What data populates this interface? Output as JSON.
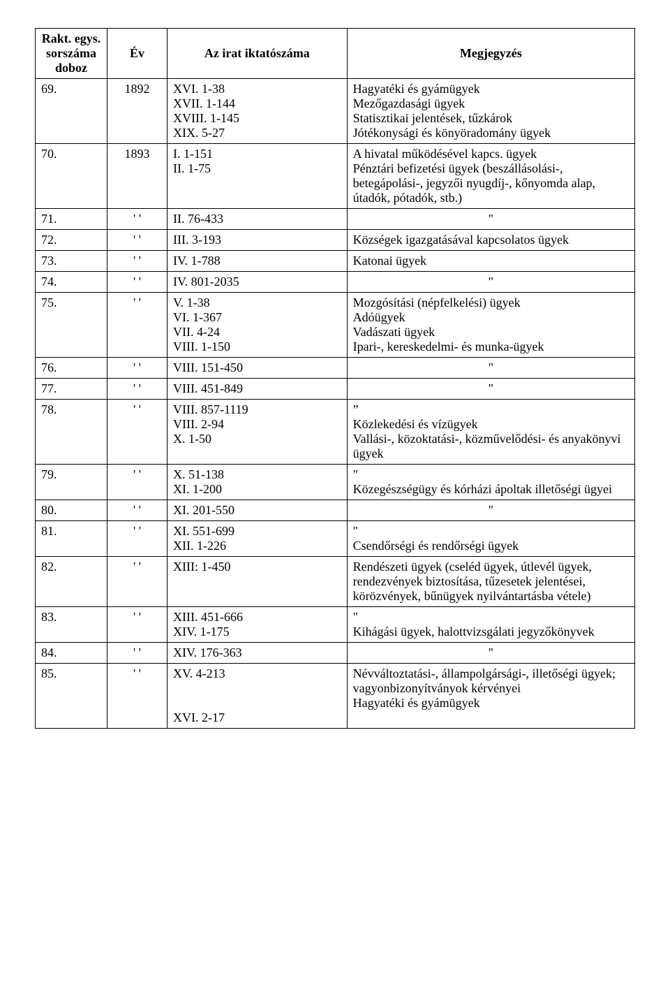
{
  "table": {
    "headers": {
      "col1_line1": "Rakt. egys.",
      "col1_line2": "sorszáma",
      "col1_line3": "doboz",
      "col2": "Év",
      "col3": "Az irat iktatószáma",
      "col4": "Megjegyzés"
    },
    "rows": [
      {
        "num": "69.",
        "ev": "1892",
        "ikt": [
          "XVI. 1-38",
          "XVII. 1-144",
          "XVIII. 1-145",
          "XIX. 5-27"
        ],
        "megj": "Hagyatéki és gyámügyek\nMezőgazdasági ügyek\nStatisztikai jelentések, tűzkárok\nJótékonysági és könyöradomány ügyek"
      },
      {
        "num": "70.",
        "ev": "1893",
        "ikt": [
          "I. 1-151",
          "II. 1-75"
        ],
        "megj": "A hivatal működésével kapcs. ügyek\nPénztári befizetési ügyek (beszállásolási-, betegápolási-, jegyzői nyugdíj-, kőnyomda alap, útadók, pótadók, stb.)"
      },
      {
        "num": "71.",
        "ev": "' '",
        "ikt": [
          "II. 76-433"
        ],
        "megj": "\"",
        "megj_center": true
      },
      {
        "num": "72.",
        "ev": "' '",
        "ikt": [
          "III. 3-193"
        ],
        "megj": "Községek igazgatásával kapcsolatos ügyek"
      },
      {
        "num": "73.",
        "ev": "' '",
        "ikt": [
          "IV. 1-788"
        ],
        "megj": "Katonai ügyek"
      },
      {
        "num": "74.",
        "ev": "' '",
        "ikt": [
          "IV. 801-2035"
        ],
        "megj": "\"",
        "megj_center": true
      },
      {
        "num": "75.",
        "ev": "' '",
        "ikt": [
          "V. 1-38",
          "VI. 1-367",
          "VII. 4-24",
          "VIII. 1-150"
        ],
        "megj": "Mozgósítási (népfelkelési) ügyek\nAdóügyek\nVadászati ügyek\nIpari-, kereskedelmi- és munka-ügyek"
      },
      {
        "num": "76.",
        "ev": "' '",
        "ikt": [
          "VIII. 151-450"
        ],
        "megj": "\"",
        "megj_center": true
      },
      {
        "num": "77.",
        "ev": "' '",
        "ikt": [
          "VIII. 451-849"
        ],
        "megj": "\"",
        "megj_center": true
      },
      {
        "num": "78.",
        "ev": "' '",
        "ikt": [
          "VIII. 857-1119",
          "VIII.   2-94",
          "X. 1-50"
        ],
        "megj": "”\nKözlekedési és vízügyek\nVallási-, közoktatási-, közművelődési- és anyakönyvi ügyek"
      },
      {
        "num": "79.",
        "ev": "' '",
        "ikt": [
          "X. 51-138",
          "XI. 1-200"
        ],
        "megj": "\"\nKözegészségügy és kórházi ápoltak illetőségi ügyei"
      },
      {
        "num": "80.",
        "ev": "' '",
        "ikt": [
          "XI. 201-550"
        ],
        "megj": "\"",
        "megj_center": true
      },
      {
        "num": "81.",
        "ev": "' '",
        "ikt": [
          "XI. 551-699",
          "XII. 1-226"
        ],
        "megj": "\"\nCsendőrségi és rendőrségi ügyek"
      },
      {
        "num": "82.",
        "ev": "' '",
        "ikt": [
          "XIII: 1-450"
        ],
        "megj": "Rendészeti ügyek (cseléd ügyek, útlevél ügyek, rendezvények biztosítása, tűzesetek jelentései, körözvények, bűnügyek nyilvántartásba vétele)"
      },
      {
        "num": "83.",
        "ev": "' '",
        "ikt": [
          "XIII. 451-666",
          "XIV. 1-175"
        ],
        "megj": "\"\nKihágási ügyek, halottvizsgálati jegyzőkönyvek"
      },
      {
        "num": "84.",
        "ev": "' '",
        "ikt": [
          "XIV. 176-363"
        ],
        "megj": "\"",
        "megj_center": true
      },
      {
        "num": "85.",
        "ev": "' '",
        "ikt": [
          "XV. 4-213",
          "",
          "",
          "XVI. 2-17"
        ],
        "megj": "Névváltoztatási-, állampolgársági-, illetőségi ügyek; vagyonbizonyítványok kérvényei\nHagyatéki és gyámügyek"
      }
    ]
  },
  "style": {
    "font_family": "Times New Roman",
    "font_size_pt": 14,
    "text_color": "#000000",
    "background_color": "#ffffff",
    "border_color": "#000000",
    "col_widths_pct": [
      12,
      10,
      30,
      48
    ]
  }
}
